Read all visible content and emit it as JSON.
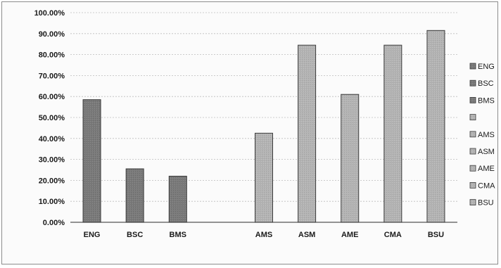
{
  "chart_data": {
    "type": "bar",
    "categories": [
      "ENG",
      "BSC",
      "BMS",
      "",
      "AMS",
      "ASM",
      "AME",
      "CMA",
      "BSU"
    ],
    "values": [
      58.5,
      25.5,
      22,
      null,
      42.5,
      84.5,
      61,
      84.5,
      91.5
    ],
    "unit": "%",
    "ylim": [
      0,
      100
    ],
    "yticks": [
      "0.00%",
      "10.00%",
      "20.00%",
      "30.00%",
      "40.00%",
      "50.00%",
      "60.00%",
      "70.00%",
      "80.00%",
      "90.00%",
      "100.00%"
    ],
    "legend": [
      "ENG",
      "BSC",
      "BMS",
      "",
      "AMS",
      "ASM",
      "AME",
      "CMA",
      "BSU"
    ],
    "legend_position": "right",
    "grid": true,
    "title": "",
    "xlabel": "",
    "ylabel": ""
  },
  "colors": {
    "bar_dark": "#777777",
    "bar_light": "#b0b0b0",
    "grid": "#bdbdbd",
    "axis": "#555555"
  }
}
